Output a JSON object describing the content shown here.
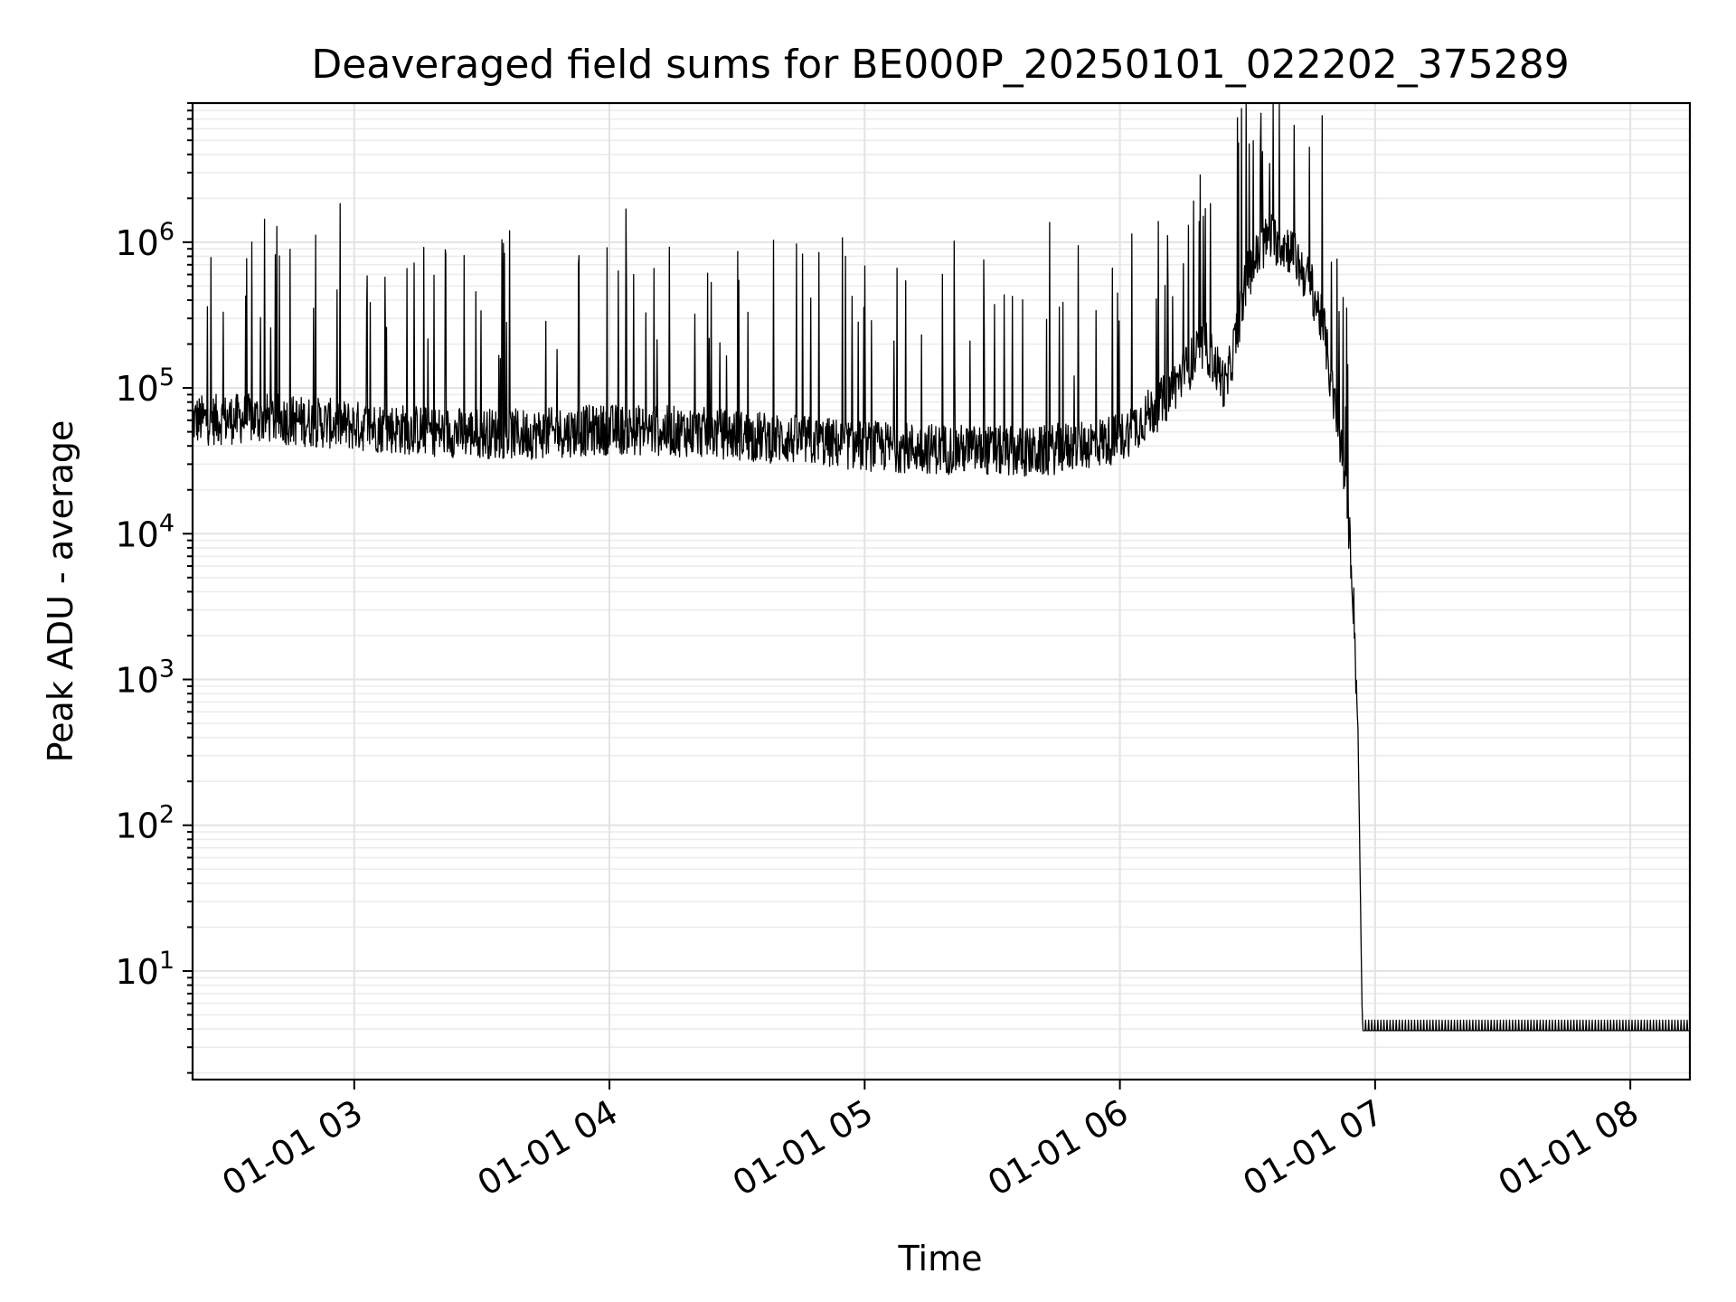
{
  "chart_data": {
    "type": "line",
    "title": "Deaveraged field sums for BE000P_20250101_022202_375289",
    "xlabel": "Time",
    "ylabel": "Peak ADU - average",
    "x_scale": "time",
    "y_scale": "log",
    "xlim": [
      "2025-01-01 02:22",
      "2025-01-01 08:14"
    ],
    "ylim": [
      1.8,
      9000000
    ],
    "grid": true,
    "x_ticks": [
      {
        "value": "2025-01-01 03:00",
        "label": "01-01 03"
      },
      {
        "value": "2025-01-01 04:00",
        "label": "01-01 04"
      },
      {
        "value": "2025-01-01 05:00",
        "label": "01-01 05"
      },
      {
        "value": "2025-01-01 06:00",
        "label": "01-01 06"
      },
      {
        "value": "2025-01-01 07:00",
        "label": "01-01 07"
      },
      {
        "value": "2025-01-01 08:00",
        "label": "01-01 08"
      }
    ],
    "y_ticks": [
      {
        "value": 10,
        "base": "10",
        "exp": "1"
      },
      {
        "value": 100,
        "base": "10",
        "exp": "2"
      },
      {
        "value": 1000,
        "base": "10",
        "exp": "3"
      },
      {
        "value": 10000,
        "base": "10",
        "exp": "4"
      },
      {
        "value": 100000,
        "base": "10",
        "exp": "5"
      },
      {
        "value": 1000000,
        "base": "10",
        "exp": "6"
      }
    ],
    "series": [
      {
        "color": "#000000",
        "points": [
          {
            "t": "2025-01-01 02:22",
            "y": 60000
          },
          {
            "t": "2025-01-01 02:40",
            "y": 62000
          },
          {
            "t": "2025-01-01 03:00",
            "y": 55000
          },
          {
            "t": "2025-01-01 03:20",
            "y": 50000
          },
          {
            "t": "2025-01-01 03:40",
            "y": 48000
          },
          {
            "t": "2025-01-01 04:00",
            "y": 52000
          },
          {
            "t": "2025-01-01 04:20",
            "y": 50000
          },
          {
            "t": "2025-01-01 04:40",
            "y": 45000
          },
          {
            "t": "2025-01-01 05:00",
            "y": 40000
          },
          {
            "t": "2025-01-01 05:20",
            "y": 38000
          },
          {
            "t": "2025-01-01 05:40",
            "y": 36000
          },
          {
            "t": "2025-01-01 06:00",
            "y": 45000
          },
          {
            "t": "2025-01-01 06:10",
            "y": 80000
          },
          {
            "t": "2025-01-01 06:20",
            "y": 200000
          },
          {
            "t": "2025-01-01 06:25",
            "y": 100000
          },
          {
            "t": "2025-01-01 06:30",
            "y": 600000
          },
          {
            "t": "2025-01-01 06:35",
            "y": 1100000
          },
          {
            "t": "2025-01-01 06:40",
            "y": 900000
          },
          {
            "t": "2025-01-01 06:45",
            "y": 500000
          },
          {
            "t": "2025-01-01 06:48",
            "y": 250000
          },
          {
            "t": "2025-01-01 06:50",
            "y": 90000
          },
          {
            "t": "2025-01-01 06:52",
            "y": 40000
          },
          {
            "t": "2025-01-01 06:54",
            "y": 10000
          },
          {
            "t": "2025-01-01 06:55",
            "y": 3000
          },
          {
            "t": "2025-01-01 06:56",
            "y": 400
          },
          {
            "t": "2025-01-01 06:57",
            "y": 4
          },
          {
            "t": "2025-01-01 08:14",
            "y": 4
          }
        ]
      }
    ]
  }
}
